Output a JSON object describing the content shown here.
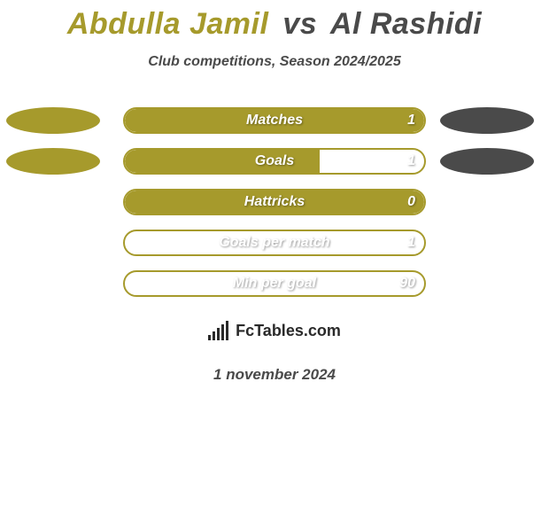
{
  "background_color": "#ffffff",
  "title": {
    "player1": "Abdulla Jamil",
    "vs": "vs",
    "player2": "Al Rashidi",
    "player1_color": "#a69a2c",
    "vs_color": "#4a4a4a",
    "player2_color": "#4a4a4a",
    "fontsize": 34
  },
  "subtitle": {
    "text": "Club competitions, Season 2024/2025",
    "color": "#4a4a4a",
    "fontsize": 16
  },
  "ellipse": {
    "left_color": "#a69a2c",
    "right_color": "#4a4a4a",
    "width": 106,
    "height": 30
  },
  "bar": {
    "track_width": 342,
    "track_height": 30,
    "border_radius": 16,
    "label_color": "#ffffff",
    "label_fontsize": 16,
    "value_color": "#ffffff"
  },
  "stats": [
    {
      "label": "Matches",
      "value": "1",
      "fill_pct": 100,
      "fill_color": "#a69a2c",
      "border_color": "#a69a2c",
      "show_left_ellipse": true,
      "show_right_ellipse": true
    },
    {
      "label": "Goals",
      "value": "1",
      "fill_pct": 65,
      "fill_color": "#a69a2c",
      "border_color": "#a69a2c",
      "show_left_ellipse": true,
      "show_right_ellipse": true
    },
    {
      "label": "Hattricks",
      "value": "0",
      "fill_pct": 100,
      "fill_color": "#a69a2c",
      "border_color": "#a69a2c",
      "show_left_ellipse": false,
      "show_right_ellipse": false
    },
    {
      "label": "Goals per match",
      "value": "1",
      "fill_pct": 0,
      "fill_color": "#a69a2c",
      "border_color": "#a69a2c",
      "show_left_ellipse": false,
      "show_right_ellipse": false
    },
    {
      "label": "Min per goal",
      "value": "90",
      "fill_pct": 0,
      "fill_color": "#a69a2c",
      "border_color": "#a69a2c",
      "show_left_ellipse": false,
      "show_right_ellipse": false
    }
  ],
  "footer": {
    "logo_text": "FcTables.com",
    "logo_bg": "#ffffff",
    "logo_color": "#2a2a2a",
    "logo_bar_heights": [
      6,
      10,
      14,
      18,
      22
    ],
    "date": "1 november 2024",
    "date_color": "#4a4a4a",
    "date_fontsize": 17
  }
}
